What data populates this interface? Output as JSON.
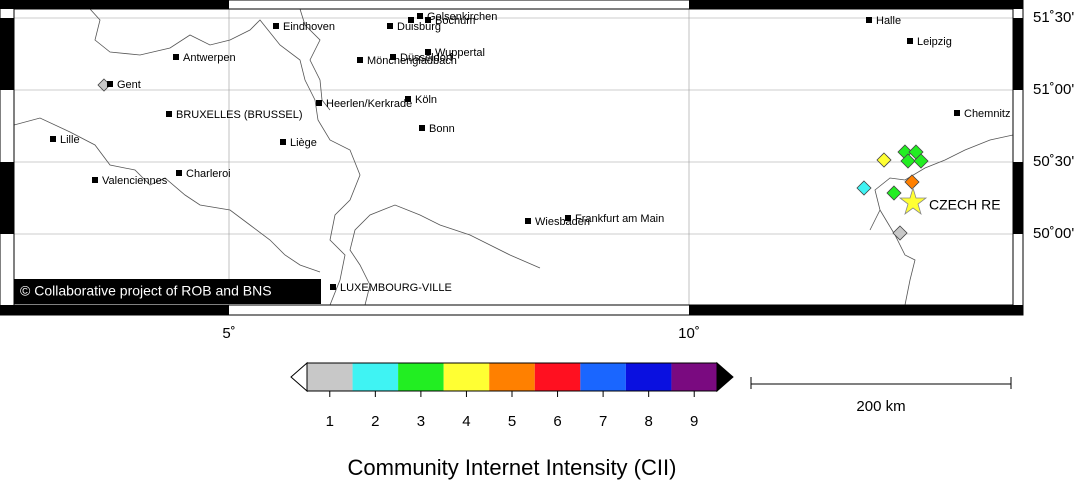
{
  "map": {
    "cities": [
      "Eindhoven",
      "Gelsenkirchen",
      "Bochum",
      "Duisburg",
      "Halle",
      "Leipzig",
      "Antwerpen",
      "Düsseldorf",
      "Wuppertal",
      "Mönchengladbach",
      "Gent",
      "Köln",
      "Heerlen/Kerkrade",
      "Chemnitz",
      "BRUXELLES (BRUSSEL)",
      "Bonn",
      "Lille",
      "Liège",
      "Charleroi",
      "Valenciennes",
      "Wiesbaden",
      "Frankfurt am Main",
      "LUXEMBOURG-VILLE"
    ],
    "epicenter_label": "CZECH RE",
    "copyright": "© Collaborative project of ROB and BNS",
    "lon_labels": [
      "5˚",
      "10˚"
    ],
    "lat_labels": [
      "51˚30'",
      "51˚00'",
      "50˚30'",
      "50˚00'"
    ]
  },
  "legend": {
    "title": "Community Internet Intensity (CII)",
    "intensity_labels": [
      1,
      2,
      3,
      4,
      5,
      6,
      7,
      8,
      9
    ],
    "colors": [
      "#c8c8c8",
      "#3ff3f3",
      "#22ee22",
      "#ffff33",
      "#ff8000",
      "#ff1020",
      "#1a66ff",
      "#0a10e0",
      "#7a0a80"
    ],
    "scale_label": "200 km"
  }
}
